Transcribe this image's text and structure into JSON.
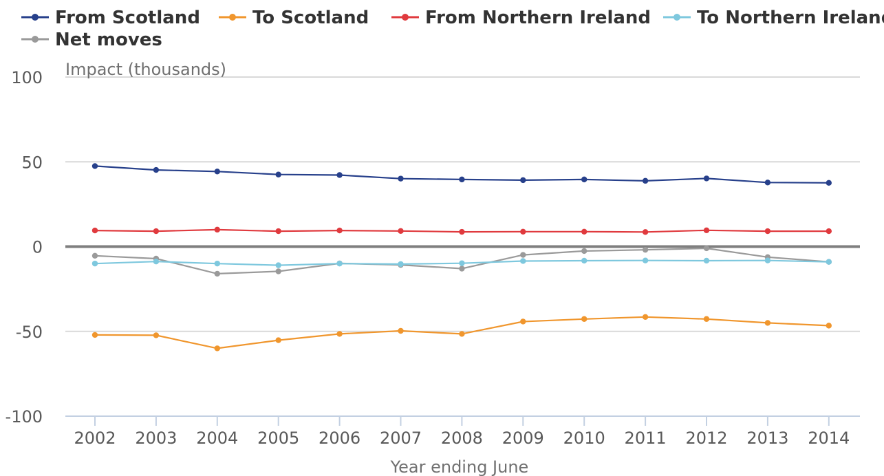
{
  "chart_data": {
    "type": "line",
    "title": "",
    "ylabel": "Impact (thousands)",
    "xlabel": "Year ending June",
    "ylim": [
      -100,
      100
    ],
    "yticks": [
      100,
      50,
      0,
      -50,
      -100
    ],
    "categories": [
      "2002",
      "2003",
      "2004",
      "2005",
      "2006",
      "2007",
      "2008",
      "2009",
      "2010",
      "2011",
      "2012",
      "2013",
      "2014"
    ],
    "grid": true,
    "legend_position": "top",
    "series": [
      {
        "name": "From Scotland",
        "color": "#27408b",
        "values": [
          47.5,
          45.2,
          44.3,
          42.5,
          42.2,
          40.1,
          39.6,
          39.2,
          39.6,
          38.8,
          40.2,
          37.8,
          37.6
        ]
      },
      {
        "name": "To Scotland",
        "color": "#f0962d",
        "values": [
          -52.1,
          -52.3,
          -60.0,
          -55.2,
          -51.5,
          -49.7,
          -51.5,
          -44.2,
          -42.7,
          -41.5,
          -42.7,
          -45.0,
          -46.6
        ]
      },
      {
        "name": "From Northern Ireland",
        "color": "#e03a3e",
        "values": [
          9.5,
          9.1,
          10.0,
          9.1,
          9.5,
          9.2,
          8.7,
          8.8,
          8.8,
          8.6,
          9.6,
          9.1,
          9.1
        ]
      },
      {
        "name": "To Northern Ireland",
        "color": "#7ec8de",
        "values": [
          -10.0,
          -8.8,
          -10.0,
          -11.0,
          -10.0,
          -10.3,
          -9.8,
          -8.5,
          -8.3,
          -8.2,
          -8.3,
          -8.2,
          -9.0
        ]
      },
      {
        "name": "Net moves",
        "color": "#9a9a9a",
        "values": [
          -5.4,
          -7.1,
          -16.0,
          -14.6,
          -9.9,
          -10.8,
          -13.0,
          -4.9,
          -2.6,
          -1.9,
          -1.0,
          -6.2,
          -9.0
        ]
      }
    ]
  }
}
